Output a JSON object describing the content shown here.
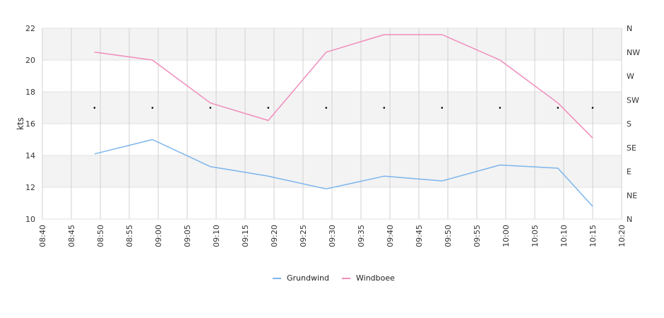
{
  "chart_data": {
    "type": "line",
    "ylabel": "kts",
    "ylim": [
      10,
      22
    ],
    "yticks": [
      "10",
      "12",
      "14",
      "16",
      "18",
      "20",
      "22"
    ],
    "xlim": [
      "08:40",
      "10:20"
    ],
    "xticks": [
      "08:40",
      "08:45",
      "08:50",
      "08:55",
      "09:00",
      "09:05",
      "09:10",
      "09:15",
      "09:20",
      "09:25",
      "09:30",
      "09:35",
      "09:40",
      "09:45",
      "09:50",
      "09:55",
      "10:00",
      "10:05",
      "10:10",
      "10:15",
      "10:20"
    ],
    "right_axis_labels": [
      "N",
      "NE",
      "E",
      "SE",
      "S",
      "SW",
      "W",
      "NW",
      "N"
    ],
    "grid": true,
    "legend_position": "bottom",
    "series": [
      {
        "name": "Grundwind",
        "color": "#7cb5ec",
        "x": [
          "08:49",
          "08:59",
          "09:09",
          "09:19",
          "09:29",
          "09:39",
          "09:49",
          "09:59",
          "10:09",
          "10:15"
        ],
        "values": [
          14.1,
          15.0,
          13.3,
          12.7,
          11.9,
          12.7,
          12.4,
          13.4,
          13.2,
          10.8
        ]
      },
      {
        "name": "Windboee",
        "color": "#f08cbc",
        "x": [
          "08:49",
          "08:59",
          "09:09",
          "09:19",
          "09:29",
          "09:39",
          "09:49",
          "09:59",
          "10:09",
          "10:15"
        ],
        "values": [
          20.5,
          20.0,
          17.3,
          16.2,
          20.5,
          21.6,
          21.6,
          20.0,
          17.3,
          15.1
        ]
      },
      {
        "name": "",
        "color": "#000000",
        "kind": "direction-markers",
        "x": [
          "08:49",
          "08:59",
          "09:09",
          "09:19",
          "09:29",
          "09:39",
          "09:49",
          "09:59",
          "10:09",
          "10:15"
        ],
        "values": [
          17,
          17,
          17,
          17,
          17,
          17,
          17,
          17,
          17,
          17
        ]
      }
    ]
  }
}
